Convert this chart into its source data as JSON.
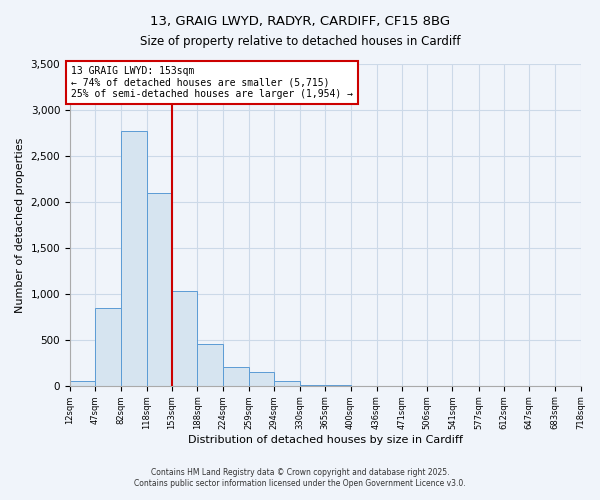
{
  "title_line1": "13, GRAIG LWYD, RADYR, CARDIFF, CF15 8BG",
  "title_line2": "Size of property relative to detached houses in Cardiff",
  "xlabel": "Distribution of detached houses by size in Cardiff",
  "ylabel": "Number of detached properties",
  "bin_edges": [
    12,
    47,
    82,
    118,
    153,
    188,
    224,
    259,
    294,
    330,
    365,
    400,
    436,
    471,
    506,
    541,
    577,
    612,
    647,
    683,
    718
  ],
  "bar_heights": [
    55,
    850,
    2775,
    2100,
    1030,
    450,
    205,
    145,
    55,
    10,
    5,
    2,
    1,
    0,
    0,
    0,
    0,
    0,
    0,
    0
  ],
  "bar_color": "#d6e4f0",
  "bar_edgecolor": "#5b9bd5",
  "tick_labels": [
    "12sqm",
    "47sqm",
    "82sqm",
    "118sqm",
    "153sqm",
    "188sqm",
    "224sqm",
    "259sqm",
    "294sqm",
    "330sqm",
    "365sqm",
    "400sqm",
    "436sqm",
    "471sqm",
    "506sqm",
    "541sqm",
    "577sqm",
    "612sqm",
    "647sqm",
    "683sqm",
    "718sqm"
  ],
  "property_line_x": 153,
  "ylim": [
    0,
    3500
  ],
  "yticks": [
    0,
    500,
    1000,
    1500,
    2000,
    2500,
    3000,
    3500
  ],
  "grid_color": "#ccd9e8",
  "annotation_title": "13 GRAIG LWYD: 153sqm",
  "annotation_line2": "← 74% of detached houses are smaller (5,715)",
  "annotation_line3": "25% of semi-detached houses are larger (1,954) →",
  "annotation_box_color": "#ffffff",
  "annotation_box_edgecolor": "#cc0000",
  "property_line_color": "#cc0000",
  "footnote1": "Contains HM Land Registry data © Crown copyright and database right 2025.",
  "footnote2": "Contains public sector information licensed under the Open Government Licence v3.0.",
  "background_color": "#f0f4fa"
}
